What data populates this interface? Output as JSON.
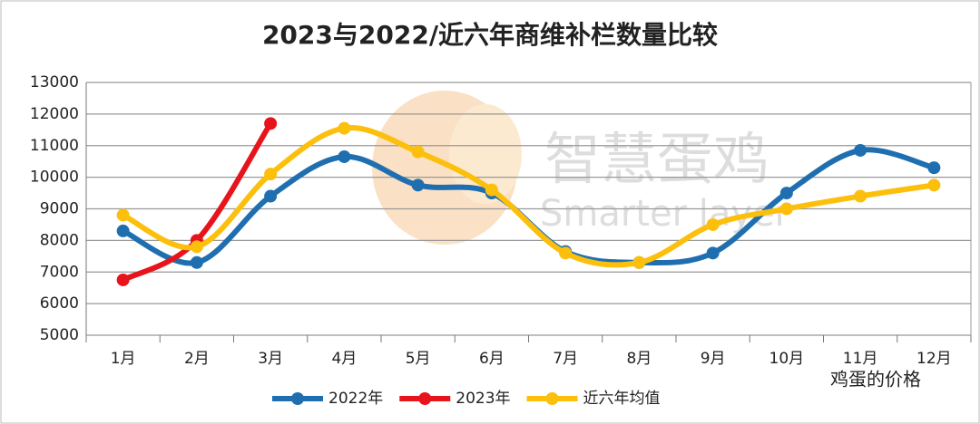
{
  "chart_data": {
    "type": "line",
    "title": "2023与2022/近六年商维补栏数量比较",
    "categories": [
      "1月",
      "2月",
      "3月",
      "4月",
      "5月",
      "6月",
      "7月",
      "8月",
      "9月",
      "10月",
      "11月",
      "12月"
    ],
    "series": [
      {
        "name": "2022年",
        "color": "#1f6fb0",
        "values": [
          8300,
          7300,
          9400,
          10650,
          9750,
          9500,
          7650,
          7300,
          7600,
          9500,
          10850,
          10300
        ]
      },
      {
        "name": "2023年",
        "color": "#e8141b",
        "values": [
          6750,
          8000,
          11700,
          null,
          null,
          null,
          null,
          null,
          null,
          null,
          null,
          null
        ]
      },
      {
        "name": "近六年均值",
        "color": "#fbbf0c",
        "values": [
          8800,
          7800,
          10100,
          11550,
          10800,
          9600,
          7600,
          7300,
          8500,
          9000,
          9400,
          9750
        ]
      }
    ],
    "ylim": [
      5000,
      13000
    ],
    "yticks": [
      5000,
      6000,
      7000,
      8000,
      9000,
      10000,
      11000,
      12000,
      13000
    ],
    "grid": true,
    "legend": "bottom",
    "watermark": [
      "智慧蛋鸡",
      "Smarter layer"
    ],
    "source": "鸡蛋的价格"
  }
}
